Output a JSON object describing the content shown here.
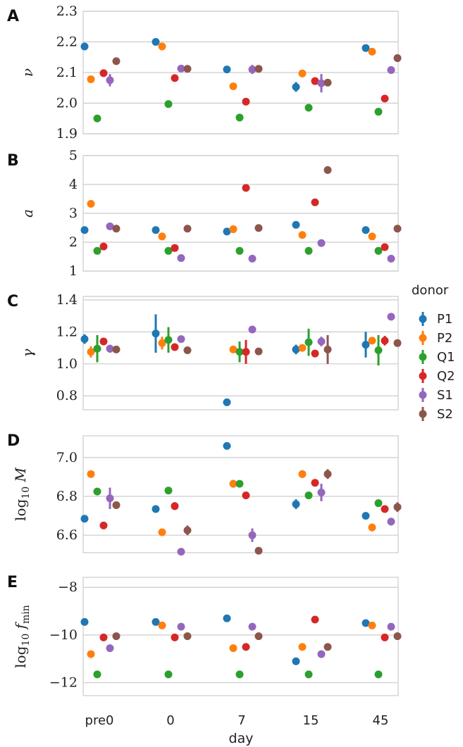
{
  "chart_data": [
    {
      "type": "scatter",
      "panel_label": "A",
      "ylabel": "ν",
      "ylim": [
        1.9,
        2.3
      ],
      "yticks": [
        "1.9",
        "2.0",
        "2.1",
        "2.2",
        "2.3"
      ],
      "categories": [
        "pre0",
        "0",
        "7",
        "15",
        "45"
      ],
      "series": [
        {
          "name": "P1",
          "values": [
            2.185,
            2.2,
            2.11,
            2.053,
            2.18
          ],
          "err": [
            0,
            0,
            0,
            0.016,
            0
          ]
        },
        {
          "name": "P2",
          "values": [
            2.078,
            2.185,
            2.055,
            2.097,
            2.168
          ],
          "err": [
            0,
            0,
            0,
            0,
            0
          ]
        },
        {
          "name": "Q1",
          "values": [
            1.95,
            1.997,
            1.953,
            1.985,
            1.972
          ],
          "err": [
            0,
            0,
            0,
            0,
            0
          ]
        },
        {
          "name": "Q2",
          "values": [
            2.098,
            2.082,
            2.005,
            2.072,
            2.015
          ],
          "err": [
            0,
            0,
            0,
            0,
            0
          ]
        },
        {
          "name": "S1",
          "values": [
            2.075,
            2.113,
            2.11,
            2.065,
            2.108
          ],
          "err": [
            0.02,
            0,
            0.015,
            0.03,
            0.012
          ]
        },
        {
          "name": "S2",
          "values": [
            2.137,
            2.112,
            2.112,
            2.067,
            2.147
          ],
          "err": [
            0,
            0,
            0,
            0,
            0
          ]
        }
      ]
    },
    {
      "type": "scatter",
      "panel_label": "B",
      "ylabel": "a",
      "ylim": [
        1,
        5
      ],
      "yticks": [
        "1",
        "2",
        "3",
        "4",
        "5"
      ],
      "categories": [
        "pre0",
        "0",
        "7",
        "15",
        "45"
      ],
      "series": [
        {
          "name": "P1",
          "values": [
            2.42,
            2.42,
            2.37,
            2.6,
            2.42
          ],
          "err": [
            0,
            0,
            0,
            0,
            0
          ]
        },
        {
          "name": "P2",
          "values": [
            3.33,
            2.2,
            2.45,
            2.25,
            2.2
          ],
          "err": [
            0,
            0,
            0,
            0,
            0
          ]
        },
        {
          "name": "Q1",
          "values": [
            1.7,
            1.7,
            1.7,
            1.7,
            1.7
          ],
          "err": [
            0,
            0,
            0,
            0,
            0
          ]
        },
        {
          "name": "Q2",
          "values": [
            1.85,
            1.8,
            3.88,
            3.38,
            1.83
          ],
          "err": [
            0,
            0,
            0,
            0,
            0
          ]
        },
        {
          "name": "S1",
          "values": [
            2.55,
            1.45,
            1.43,
            1.97,
            1.43
          ],
          "err": [
            0,
            0,
            0,
            0,
            0
          ]
        },
        {
          "name": "S2",
          "values": [
            2.47,
            2.47,
            2.49,
            4.5,
            2.47
          ],
          "err": [
            0,
            0,
            0,
            0,
            0
          ]
        }
      ]
    },
    {
      "type": "scatter",
      "panel_label": "C",
      "ylabel": "γ",
      "ylim": [
        0.7,
        1.4
      ],
      "yticks": [
        "0.8",
        "1.0",
        "1.2",
        "1.4"
      ],
      "categories": [
        "pre0",
        "0",
        "7",
        "15",
        "45"
      ],
      "series": [
        {
          "name": "P1",
          "values": [
            1.155,
            1.19,
            0.76,
            1.09,
            1.12
          ],
          "err": [
            0.03,
            0.12,
            0,
            0.03,
            0.08
          ]
        },
        {
          "name": "P2",
          "values": [
            1.075,
            1.13,
            1.09,
            1.1,
            1.145
          ],
          "err": [
            0.035,
            0.04,
            0,
            0,
            0
          ]
        },
        {
          "name": "Q1",
          "values": [
            1.095,
            1.15,
            1.075,
            1.135,
            1.085
          ],
          "err": [
            0.085,
            0.08,
            0.065,
            0.085,
            0.095
          ]
        },
        {
          "name": "Q2",
          "values": [
            1.14,
            1.105,
            1.075,
            1.065,
            1.145
          ],
          "err": [
            0,
            0,
            0.075,
            0,
            0.03
          ]
        },
        {
          "name": "S1",
          "values": [
            1.095,
            1.155,
            1.215,
            1.14,
            1.295
          ],
          "err": [
            0.025,
            0,
            0,
            0.03,
            0
          ]
        },
        {
          "name": "S2",
          "values": [
            1.09,
            1.085,
            1.078,
            1.09,
            1.13
          ],
          "err": [
            0,
            0,
            0,
            0.09,
            0
          ]
        }
      ]
    },
    {
      "type": "scatter",
      "panel_label": "D",
      "ylabel": "log10 M",
      "ylim": [
        6.5,
        7.1
      ],
      "yticks": [
        "6.6",
        "6.8",
        "7.0"
      ],
      "categories": [
        "pre0",
        "0",
        "7",
        "15",
        "45"
      ],
      "series": [
        {
          "name": "P1",
          "values": [
            6.685,
            6.735,
            7.06,
            6.76,
            6.7
          ],
          "err": [
            0,
            0,
            0,
            0.025,
            0
          ]
        },
        {
          "name": "P2",
          "values": [
            6.915,
            6.615,
            6.865,
            6.915,
            6.64
          ],
          "err": [
            0,
            0,
            0.02,
            0.02,
            0.02
          ]
        },
        {
          "name": "Q1",
          "values": [
            6.825,
            6.83,
            6.865,
            6.805,
            6.765
          ],
          "err": [
            0,
            0,
            0,
            0,
            0
          ]
        },
        {
          "name": "Q2",
          "values": [
            6.65,
            6.75,
            6.805,
            6.87,
            6.735
          ],
          "err": [
            0,
            0.02,
            0,
            0,
            0
          ]
        },
        {
          "name": "S1",
          "values": [
            6.79,
            6.515,
            6.6,
            6.82,
            6.67
          ],
          "err": [
            0.055,
            0,
            0.035,
            0.045,
            0.02
          ]
        },
        {
          "name": "S2",
          "values": [
            6.755,
            6.625,
            6.52,
            6.915,
            6.745
          ],
          "err": [
            0,
            0.025,
            0.015,
            0.025,
            0.025
          ]
        }
      ]
    },
    {
      "type": "scatter",
      "panel_label": "E",
      "ylabel": "log10 f_min",
      "ylim": [
        -12.5,
        -7.5
      ],
      "yticks": [
        "−12",
        "−10",
        "−8"
      ],
      "categories": [
        "pre0",
        "0",
        "7",
        "15",
        "45"
      ],
      "series": [
        {
          "name": "P1",
          "values": [
            -9.45,
            -9.45,
            -9.3,
            -11.1,
            -9.5
          ],
          "err": [
            0,
            0,
            0,
            0,
            0
          ]
        },
        {
          "name": "P2",
          "values": [
            -10.8,
            -9.6,
            -10.55,
            -10.5,
            -9.6
          ],
          "err": [
            0,
            0,
            0,
            0,
            0
          ]
        },
        {
          "name": "Q1",
          "values": [
            -11.65,
            -11.65,
            -11.65,
            -11.65,
            -11.65
          ],
          "err": [
            0,
            0,
            0,
            0,
            0
          ]
        },
        {
          "name": "Q2",
          "values": [
            -10.1,
            -10.1,
            -10.5,
            -9.35,
            -10.1
          ],
          "err": [
            0,
            0,
            0,
            0,
            0
          ]
        },
        {
          "name": "S1",
          "values": [
            -10.55,
            -9.65,
            -9.65,
            -10.8,
            -9.65
          ],
          "err": [
            0,
            0,
            0,
            0,
            0
          ]
        },
        {
          "name": "S2",
          "values": [
            -10.05,
            -10.05,
            -10.05,
            -10.5,
            -10.05
          ],
          "err": [
            0,
            0,
            0,
            0,
            0
          ]
        }
      ]
    }
  ],
  "x_axis": {
    "xlabel": "day",
    "tick_labels": [
      "pre0",
      "0",
      "7",
      "15",
      "45"
    ]
  },
  "legend": {
    "title": "donor",
    "placement": "right",
    "entries": [
      "P1",
      "P2",
      "Q1",
      "Q2",
      "S1",
      "S2"
    ],
    "colors": [
      "#1f77b4",
      "#ff7f0e",
      "#2ca02c",
      "#d62728",
      "#9467bd",
      "#8c564b"
    ]
  }
}
